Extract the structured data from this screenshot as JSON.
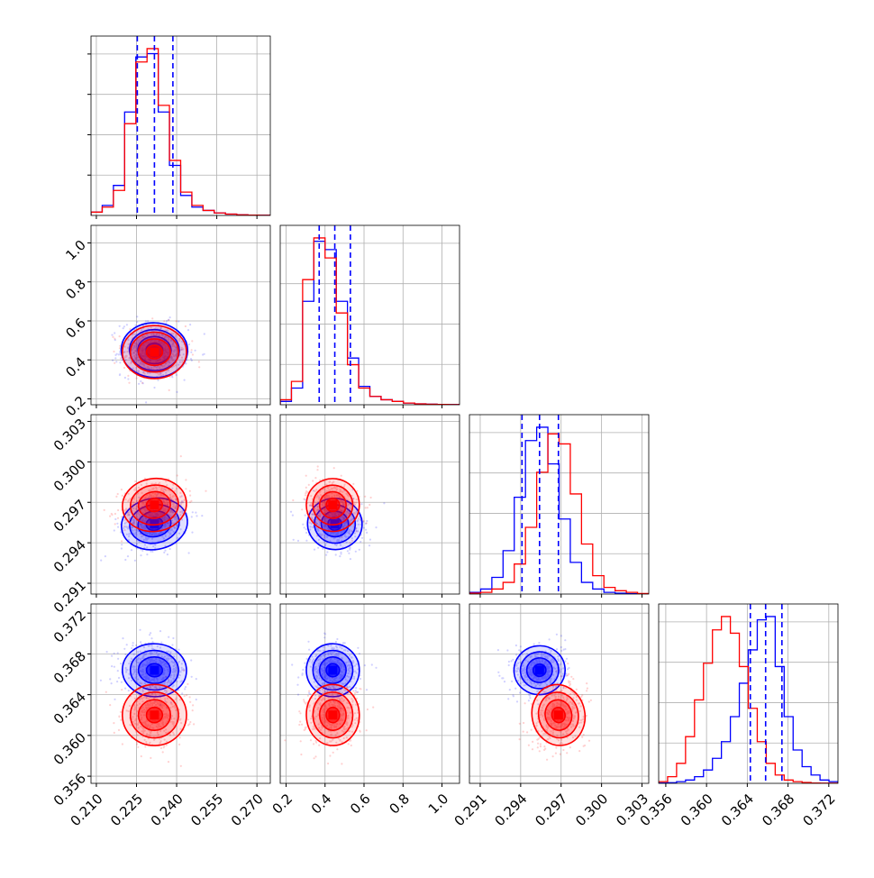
{
  "chart_data": {
    "type": "corner",
    "series": [
      {
        "name": "",
        "color": "#0000ff"
      },
      {
        "name": "",
        "color": "#ff0000"
      }
    ],
    "grid": true,
    "params": [
      {
        "ticks": [
          "0.210",
          "0.225",
          "0.240",
          "0.255",
          "0.270"
        ],
        "tick_values": [
          0.21,
          0.225,
          0.24,
          0.255,
          0.27
        ],
        "range": [
          0.208,
          0.275
        ],
        "quantiles": [
          0.2253,
          0.2317,
          0.2386
        ],
        "blue_hist": [
          0.02,
          0.06,
          0.18,
          0.62,
          0.95,
          0.97,
          0.62,
          0.3,
          0.12,
          0.05,
          0.03,
          0.015,
          0.008,
          0.004,
          0.002,
          0.001
        ],
        "red_hist": [
          0.02,
          0.05,
          0.15,
          0.55,
          0.92,
          1.0,
          0.66,
          0.33,
          0.14,
          0.06,
          0.03,
          0.015,
          0.008,
          0.004,
          0.002,
          0.001
        ]
      },
      {
        "ticks": [
          "0.2",
          "0.4",
          "0.6",
          "0.8",
          "1.0"
        ],
        "tick_values": [
          0.2,
          0.4,
          0.6,
          0.8,
          1.0
        ],
        "range": [
          0.17,
          1.09
        ],
        "quantiles": [
          0.37,
          0.45,
          0.53
        ],
        "blue_hist": [
          0.02,
          0.1,
          0.62,
          0.98,
          0.93,
          0.62,
          0.28,
          0.11,
          0.05,
          0.03,
          0.02,
          0.01,
          0.005,
          0.003,
          0.002,
          0.001
        ],
        "red_hist": [
          0.03,
          0.14,
          0.75,
          1.0,
          0.88,
          0.55,
          0.24,
          0.1,
          0.05,
          0.03,
          0.02,
          0.01,
          0.005,
          0.003,
          0.002,
          0.001
        ]
      },
      {
        "ticks": [
          "0.291",
          "0.294",
          "0.297",
          "0.300",
          "0.303"
        ],
        "tick_values": [
          0.291,
          0.294,
          0.297,
          0.3,
          0.303
        ],
        "range": [
          0.2902,
          0.3035
        ],
        "quantiles": [
          0.2941,
          0.2954,
          0.2968
        ],
        "blue_hist": [
          0.01,
          0.03,
          0.1,
          0.26,
          0.58,
          0.92,
          1.0,
          0.78,
          0.45,
          0.19,
          0.07,
          0.03,
          0.01,
          0.005,
          0.002,
          0.001
        ],
        "red_hist": [
          0.005,
          0.01,
          0.03,
          0.07,
          0.18,
          0.4,
          0.73,
          0.96,
          0.9,
          0.6,
          0.3,
          0.11,
          0.04,
          0.02,
          0.01,
          0.003
        ]
      },
      {
        "ticks": [
          "0.356",
          "0.360",
          "0.364",
          "0.368",
          "0.372"
        ],
        "tick_values": [
          0.356,
          0.36,
          0.364,
          0.368,
          0.372
        ],
        "range": [
          0.3553,
          0.3729
        ],
        "quantiles": [
          0.3643,
          0.3658,
          0.3674
        ],
        "blue_hist": [
          0.002,
          0.004,
          0.01,
          0.02,
          0.04,
          0.08,
          0.15,
          0.25,
          0.4,
          0.6,
          0.8,
          0.98,
          1.0,
          0.7,
          0.4,
          0.2,
          0.1,
          0.05,
          0.02,
          0.01
        ],
        "red_hist": [
          0.01,
          0.04,
          0.12,
          0.28,
          0.5,
          0.72,
          0.92,
          1.0,
          0.9,
          0.7,
          0.45,
          0.25,
          0.12,
          0.05,
          0.02,
          0.01,
          0.005,
          0.002,
          0.001,
          0.001
        ]
      }
    ],
    "pairs": [
      {
        "row": 1,
        "col": 0,
        "blue": {
          "mean": [
            0.2317,
            0.45
          ],
          "sd": [
            0.0062,
            0.07
          ],
          "rho": -0.05
        },
        "red": {
          "mean": [
            0.2317,
            0.44
          ],
          "sd": [
            0.006,
            0.068
          ],
          "rho": 0.0
        }
      },
      {
        "row": 2,
        "col": 0,
        "blue": {
          "mean": [
            0.2317,
            0.2954
          ],
          "sd": [
            0.0062,
            0.00095
          ],
          "rho": 0.25
        },
        "red": {
          "mean": [
            0.2317,
            0.2968
          ],
          "sd": [
            0.006,
            0.00098
          ],
          "rho": 0.2
        }
      },
      {
        "row": 2,
        "col": 1,
        "blue": {
          "mean": [
            0.45,
            0.2954
          ],
          "sd": [
            0.07,
            0.00095
          ],
          "rho": -0.15
        },
        "red": {
          "mean": [
            0.44,
            0.2968
          ],
          "sd": [
            0.068,
            0.00098
          ],
          "rho": -0.2
        }
      },
      {
        "row": 3,
        "col": 0,
        "blue": {
          "mean": [
            0.2317,
            0.3664
          ],
          "sd": [
            0.006,
            0.0013
          ],
          "rho": -0.05
        },
        "red": {
          "mean": [
            0.2317,
            0.362
          ],
          "sd": [
            0.006,
            0.0015
          ],
          "rho": 0.05
        }
      },
      {
        "row": 3,
        "col": 1,
        "blue": {
          "mean": [
            0.44,
            0.3664
          ],
          "sd": [
            0.068,
            0.0013
          ],
          "rho": -0.05
        },
        "red": {
          "mean": [
            0.44,
            0.362
          ],
          "sd": [
            0.068,
            0.0015
          ],
          "rho": 0.05
        }
      },
      {
        "row": 3,
        "col": 2,
        "blue": {
          "mean": [
            0.2954,
            0.3664
          ],
          "sd": [
            0.00095,
            0.0012
          ],
          "rho": 0.15
        },
        "red": {
          "mean": [
            0.2968,
            0.362
          ],
          "sd": [
            0.00098,
            0.0015
          ],
          "rho": 0.3
        }
      }
    ]
  }
}
